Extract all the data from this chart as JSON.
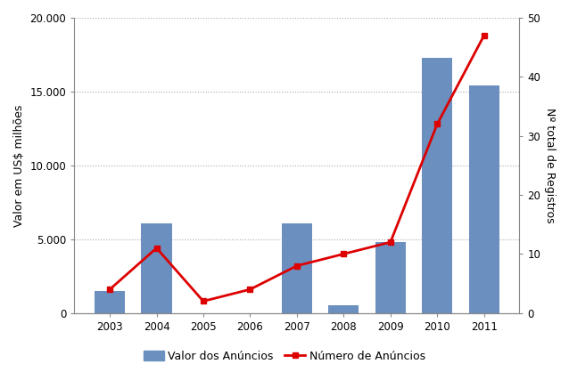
{
  "years": [
    2003,
    2004,
    2005,
    2006,
    2007,
    2008,
    2009,
    2010,
    2011
  ],
  "bar_values": [
    1500,
    6100,
    0,
    0,
    6050,
    500,
    4800,
    17300,
    15400
  ],
  "line_values": [
    4,
    11,
    2,
    4,
    8,
    10,
    12,
    32,
    47
  ],
  "bar_color": "#6b8fbf",
  "line_color": "#dd0000",
  "ylabel_left": "Valor em US$ milhões",
  "ylabel_right": "Nº total de Registros",
  "ylim_left": [
    0,
    20000
  ],
  "ylim_right": [
    0,
    50
  ],
  "yticks_left": [
    0,
    5000,
    10000,
    15000,
    20000
  ],
  "yticks_right": [
    0,
    10,
    20,
    30,
    40,
    50
  ],
  "ytick_labels_left": [
    "0",
    "5.000",
    "10.000",
    "15.000",
    "20.000"
  ],
  "ytick_labels_right": [
    "0",
    "10",
    "20",
    "30",
    "40",
    "50"
  ],
  "legend_bar": "Valor dos Anúncios",
  "legend_line": "Número de Anúncios",
  "background_color": "#ffffff",
  "grid_color": "#aaaaaa",
  "bar_width": 0.65,
  "tick_fontsize": 8.5,
  "label_fontsize": 9,
  "legend_fontsize": 9
}
